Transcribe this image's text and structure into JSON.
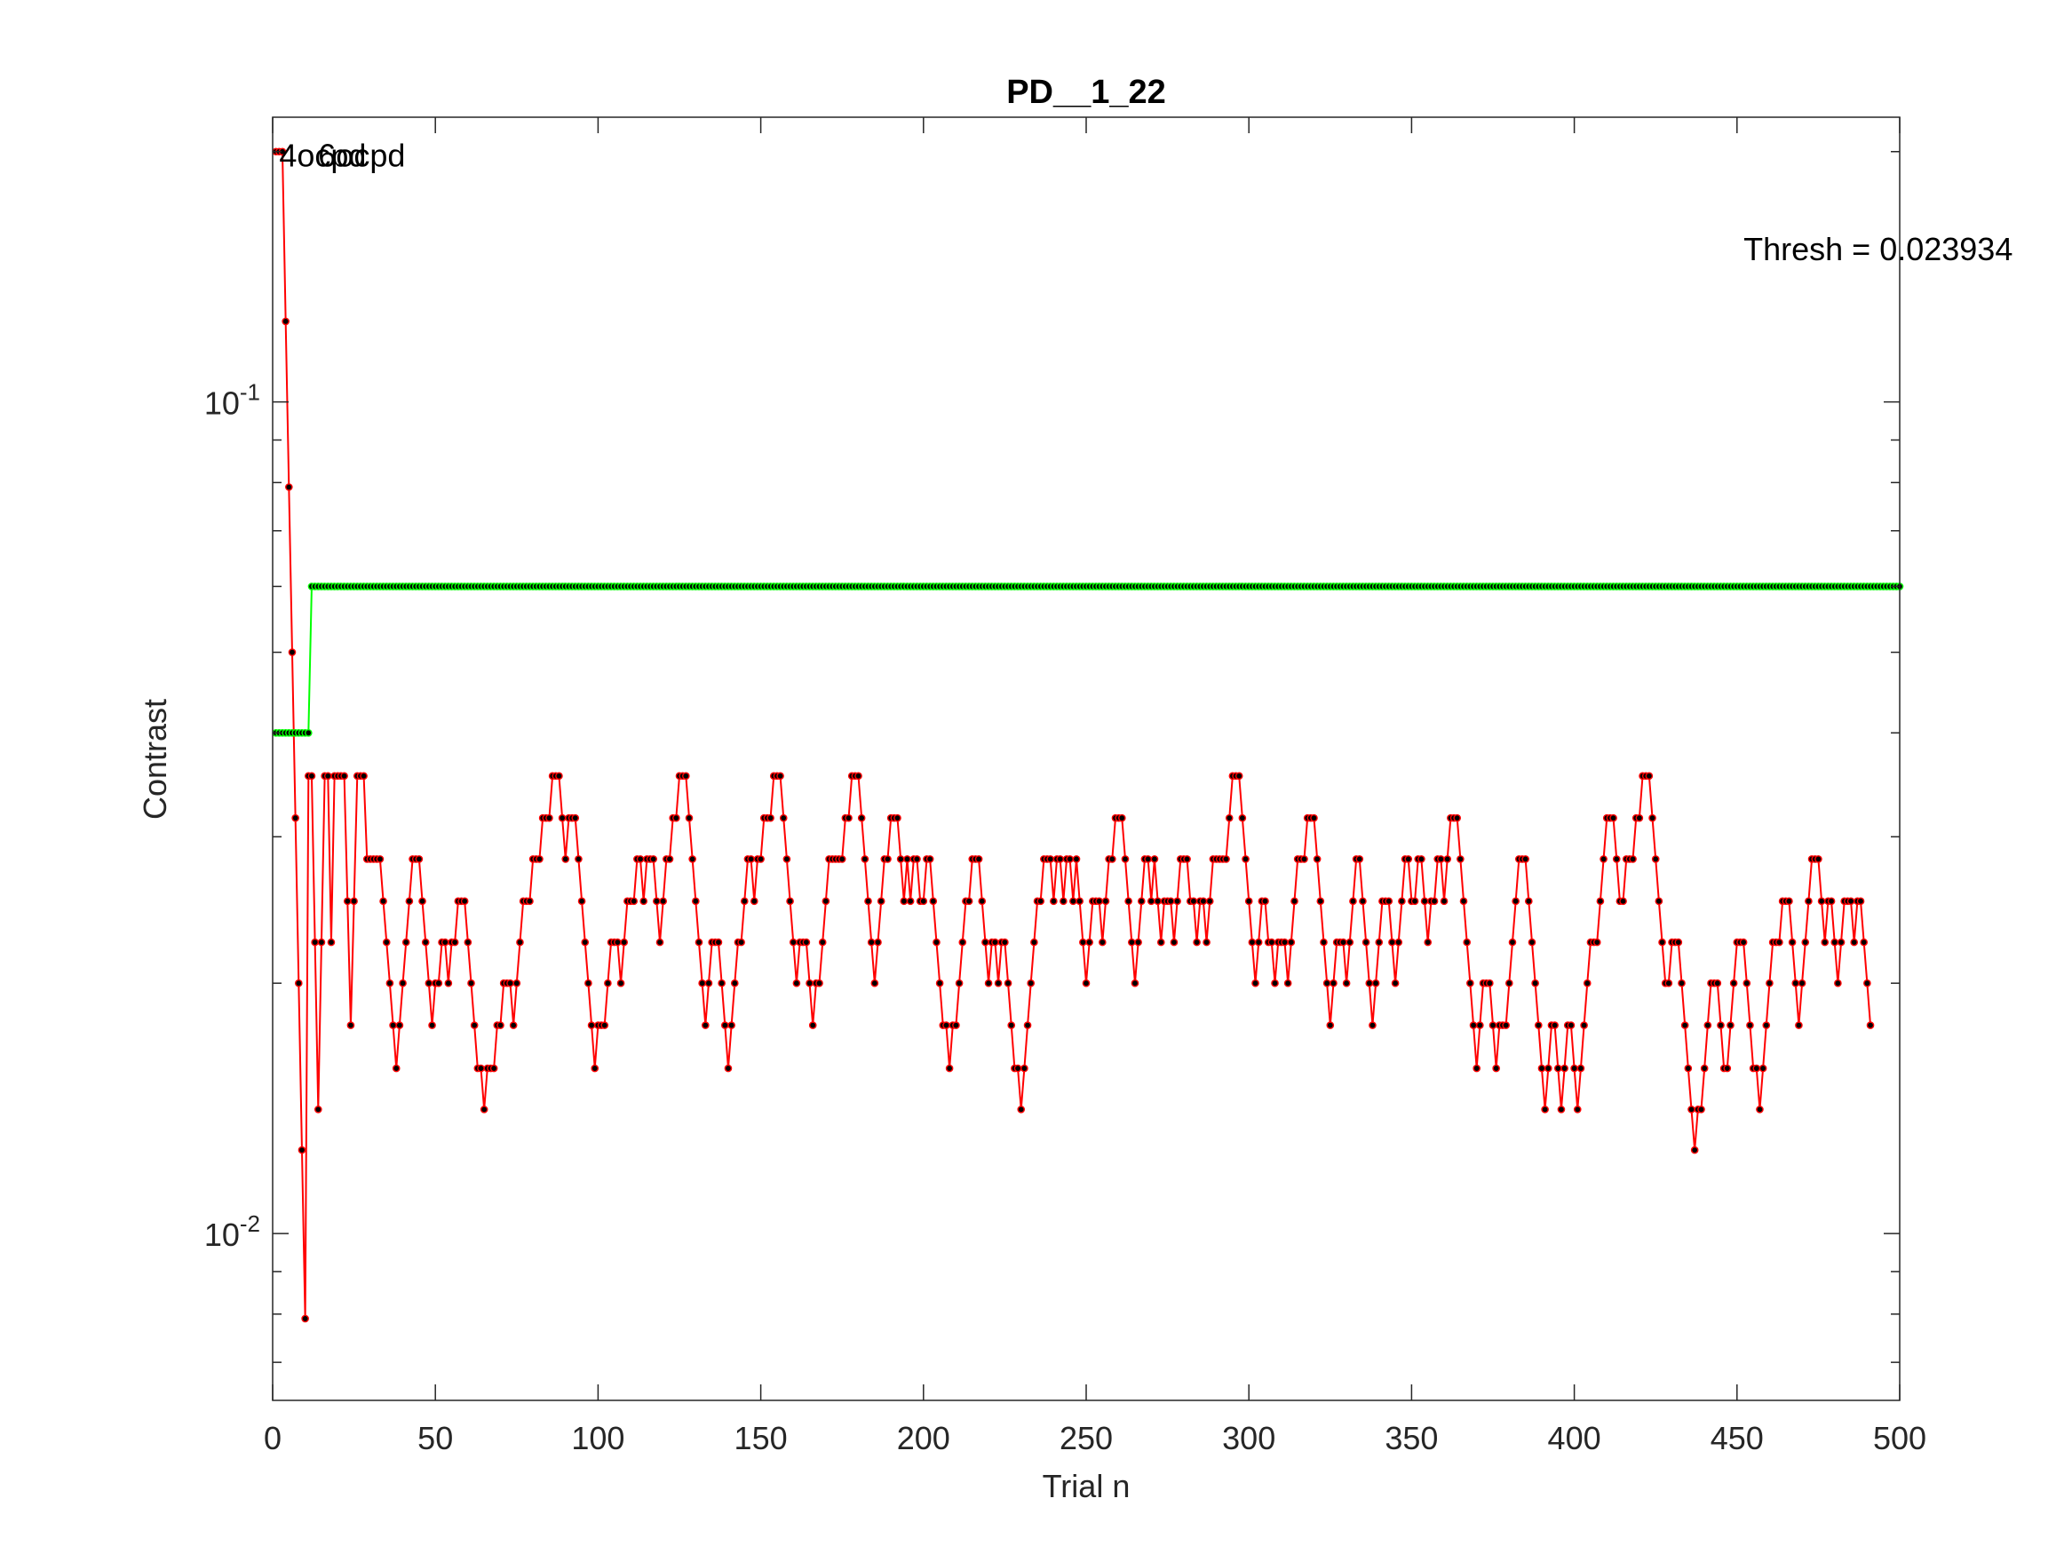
{
  "chart_data": {
    "type": "line",
    "title": "PD__1_22",
    "xlabel": "Trial n",
    "ylabel": "Contrast",
    "xlim": [
      0,
      500
    ],
    "ylim": [
      0.0063,
      0.22
    ],
    "yscale": "log",
    "grid": false,
    "xticks": [
      0,
      50,
      100,
      150,
      200,
      250,
      300,
      350,
      400,
      450,
      500
    ],
    "xtick_labels": [
      "0",
      "50",
      "100",
      "150",
      "200",
      "250",
      "300",
      "350",
      "400",
      "450",
      "500"
    ],
    "yticks": [
      0.01,
      0.1
    ],
    "ytick_labels": [
      {
        "base": "10",
        "exp": "-2"
      },
      {
        "base": "10",
        "exp": "-1"
      }
    ],
    "annotations": [
      {
        "text": "4ocpd",
        "x": 2,
        "y": 0.192
      },
      {
        "text": "6ocpd",
        "x": 14,
        "y": 0.192
      },
      {
        "text": "Thresh = 0.023934",
        "x": 452,
        "y": 0.148
      }
    ],
    "series": [
      {
        "color": "#ff0000",
        "marker_color": "#000000",
        "trial_start": 1,
        "values": [
          0.2,
          0.2,
          0.2,
          0.125,
          0.079,
          0.05,
          0.0316,
          0.02,
          0.0126,
          0.0079,
          0.0355,
          0.0355,
          0.0224,
          0.0141,
          0.0224,
          0.0355,
          0.0355,
          0.0224,
          0.0355,
          0.0355,
          0.0355,
          0.0355,
          0.0251,
          0.0178,
          0.0251,
          0.0355,
          0.0355,
          0.0355,
          0.0282,
          0.0282,
          0.0282,
          0.0282,
          0.0282,
          0.0251,
          0.0224,
          0.02,
          0.0178,
          0.0158,
          0.0178,
          0.02,
          0.0224,
          0.0251,
          0.0282,
          0.0282,
          0.0282,
          0.0251,
          0.0224,
          0.02,
          0.0178,
          0.02,
          0.02,
          0.0224,
          0.0224,
          0.02,
          0.0224,
          0.0224,
          0.0251,
          0.0251,
          0.0251,
          0.0224,
          0.02,
          0.0178,
          0.0158,
          0.0158,
          0.0141,
          0.0158,
          0.0158,
          0.0158,
          0.0178,
          0.0178,
          0.02,
          0.02,
          0.02,
          0.0178,
          0.02,
          0.0224,
          0.0251,
          0.0251,
          0.0251,
          0.0282,
          0.0282,
          0.0282,
          0.0316,
          0.0316,
          0.0316,
          0.0355,
          0.0355,
          0.0355,
          0.0316,
          0.0282,
          0.0316,
          0.0316,
          0.0316,
          0.0282,
          0.0251,
          0.0224,
          0.02,
          0.0178,
          0.0158,
          0.0178,
          0.0178,
          0.0178,
          0.02,
          0.0224,
          0.0224,
          0.0224,
          0.02,
          0.0224,
          0.0251,
          0.0251,
          0.0251,
          0.0282,
          0.0282,
          0.0251,
          0.0282,
          0.0282,
          0.0282,
          0.0251,
          0.0224,
          0.0251,
          0.0282,
          0.0282,
          0.0316,
          0.0316,
          0.0355,
          0.0355,
          0.0355,
          0.0316,
          0.0282,
          0.0251,
          0.0224,
          0.02,
          0.0178,
          0.02,
          0.0224,
          0.0224,
          0.0224,
          0.02,
          0.0178,
          0.0158,
          0.0178,
          0.02,
          0.0224,
          0.0224,
          0.0251,
          0.0282,
          0.0282,
          0.0251,
          0.0282,
          0.0282,
          0.0316,
          0.0316,
          0.0316,
          0.0355,
          0.0355,
          0.0355,
          0.0316,
          0.0282,
          0.0251,
          0.0224,
          0.02,
          0.0224,
          0.0224,
          0.0224,
          0.02,
          0.0178,
          0.02,
          0.02,
          0.0224,
          0.0251,
          0.0282,
          0.0282,
          0.0282,
          0.0282,
          0.0282,
          0.0316,
          0.0316,
          0.0355,
          0.0355,
          0.0355,
          0.0316,
          0.0282,
          0.0251,
          0.0224,
          0.02,
          0.0224,
          0.0251,
          0.0282,
          0.0282,
          0.0316,
          0.0316,
          0.0316,
          0.0282,
          0.0251,
          0.0282,
          0.0251,
          0.0282,
          0.0282,
          0.0251,
          0.0251,
          0.0282,
          0.0282,
          0.0251,
          0.0224,
          0.02,
          0.0178,
          0.0178,
          0.0158,
          0.0178,
          0.0178,
          0.02,
          0.0224,
          0.0251,
          0.0251,
          0.0282,
          0.0282,
          0.0282,
          0.0251,
          0.0224,
          0.02,
          0.0224,
          0.0224,
          0.02,
          0.0224,
          0.0224,
          0.02,
          0.0178,
          0.0158,
          0.0158,
          0.0141,
          0.0158,
          0.0178,
          0.02,
          0.0224,
          0.0251,
          0.0251,
          0.0282,
          0.0282,
          0.0282,
          0.0251,
          0.0282,
          0.0282,
          0.0251,
          0.0282,
          0.0282,
          0.0251,
          0.0282,
          0.0251,
          0.0224,
          0.02,
          0.0224,
          0.0251,
          0.0251,
          0.0251,
          0.0224,
          0.0251,
          0.0282,
          0.0282,
          0.0316,
          0.0316,
          0.0316,
          0.0282,
          0.0251,
          0.0224,
          0.02,
          0.0224,
          0.0251,
          0.0282,
          0.0282,
          0.0251,
          0.0282,
          0.0251,
          0.0224,
          0.0251,
          0.0251,
          0.0251,
          0.0224,
          0.0251,
          0.0282,
          0.0282,
          0.0282,
          0.0251,
          0.0251,
          0.0224,
          0.0251,
          0.0251,
          0.0224,
          0.0251,
          0.0282,
          0.0282,
          0.0282,
          0.0282,
          0.0282,
          0.0316,
          0.0355,
          0.0355,
          0.0355,
          0.0316,
          0.0282,
          0.0251,
          0.0224,
          0.02,
          0.0224,
          0.0251,
          0.0251,
          0.0224,
          0.0224,
          0.02,
          0.0224,
          0.0224,
          0.0224,
          0.02,
          0.0224,
          0.0251,
          0.0282,
          0.0282,
          0.0282,
          0.0316,
          0.0316,
          0.0316,
          0.0282,
          0.0251,
          0.0224,
          0.02,
          0.0178,
          0.02,
          0.0224,
          0.0224,
          0.0224,
          0.02,
          0.0224,
          0.0251,
          0.0282,
          0.0282,
          0.0251,
          0.0224,
          0.02,
          0.0178,
          0.02,
          0.0224,
          0.0251,
          0.0251,
          0.0251,
          0.0224,
          0.02,
          0.0224,
          0.0251,
          0.0282,
          0.0282,
          0.0251,
          0.0251,
          0.0282,
          0.0282,
          0.0251,
          0.0224,
          0.0251,
          0.0251,
          0.0282,
          0.0282,
          0.0251,
          0.0282,
          0.0316,
          0.0316,
          0.0316,
          0.0282,
          0.0251,
          0.0224,
          0.02,
          0.0178,
          0.0158,
          0.0178,
          0.02,
          0.02,
          0.02,
          0.0178,
          0.0158,
          0.0178,
          0.0178,
          0.0178,
          0.02,
          0.0224,
          0.0251,
          0.0282,
          0.0282,
          0.0282,
          0.0251,
          0.0224,
          0.02,
          0.0178,
          0.0158,
          0.0141,
          0.0158,
          0.0178,
          0.0178,
          0.0158,
          0.0141,
          0.0158,
          0.0178,
          0.0178,
          0.0158,
          0.0141,
          0.0158,
          0.0178,
          0.02,
          0.0224,
          0.0224,
          0.0224,
          0.0251,
          0.0282,
          0.0316,
          0.0316,
          0.0316,
          0.0282,
          0.0251,
          0.0251,
          0.0282,
          0.0282,
          0.0282,
          0.0316,
          0.0316,
          0.0355,
          0.0355,
          0.0355,
          0.0316,
          0.0282,
          0.0251,
          0.0224,
          0.02,
          0.02,
          0.0224,
          0.0224,
          0.0224,
          0.02,
          0.0178,
          0.0158,
          0.0141,
          0.0126,
          0.0141,
          0.0141,
          0.0158,
          0.0178,
          0.02,
          0.02,
          0.02,
          0.0178,
          0.0158,
          0.0158,
          0.0178,
          0.02,
          0.0224,
          0.0224,
          0.0224,
          0.02,
          0.0178,
          0.0158,
          0.0158,
          0.0141,
          0.0158,
          0.0178,
          0.02,
          0.0224,
          0.0224,
          0.0224,
          0.0251,
          0.0251,
          0.0251,
          0.0224,
          0.02,
          0.0178,
          0.02,
          0.0224,
          0.0251,
          0.0282,
          0.0282,
          0.0282,
          0.0251,
          0.0224,
          0.0251,
          0.0251,
          0.0224,
          0.02,
          0.0224,
          0.0251,
          0.0251,
          0.0251,
          0.0224,
          0.0251,
          0.0251,
          0.0224,
          0.02,
          0.0178
        ]
      },
      {
        "color": "#00ff00",
        "marker_color": "#000000",
        "trial_start": 1,
        "segments": [
          {
            "from_trial": 1,
            "to_trial": 11,
            "value": 0.04
          },
          {
            "from_trial": 12,
            "to_trial": 500,
            "value": 0.06
          }
        ]
      }
    ]
  }
}
